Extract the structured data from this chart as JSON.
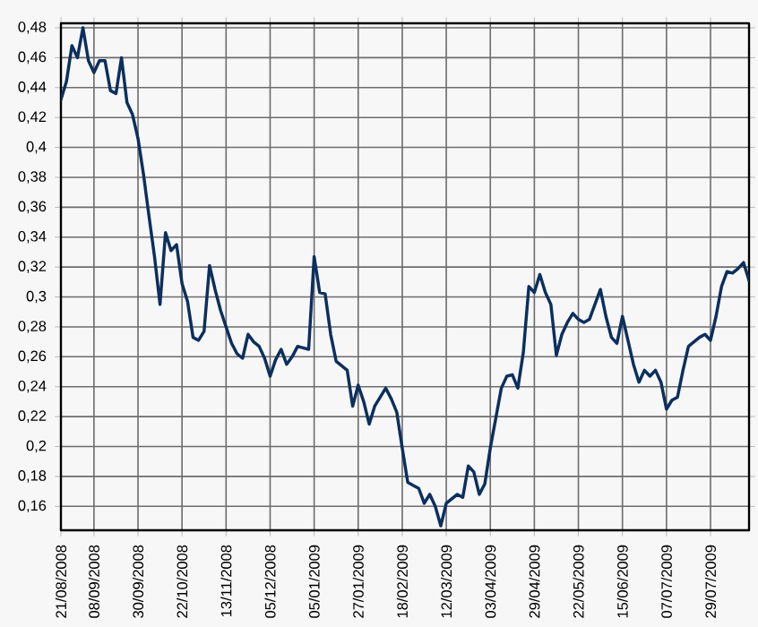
{
  "chart_data": {
    "type": "line",
    "categories": [
      "21/08/2008",
      null,
      null,
      null,
      null,
      null,
      "08/09/2008",
      null,
      null,
      null,
      null,
      null,
      null,
      null,
      "30/09/2008",
      null,
      null,
      null,
      null,
      null,
      null,
      null,
      "22/10/2008",
      null,
      null,
      null,
      null,
      null,
      null,
      null,
      "13/11/2008",
      null,
      null,
      null,
      null,
      null,
      null,
      null,
      "05/12/2008",
      null,
      null,
      null,
      null,
      null,
      null,
      null,
      "05/01/2009",
      null,
      null,
      null,
      null,
      null,
      null,
      null,
      "27/01/2009",
      null,
      null,
      null,
      null,
      null,
      null,
      null,
      "18/02/2009",
      null,
      null,
      null,
      null,
      null,
      null,
      null,
      "12/03/2009",
      null,
      null,
      null,
      null,
      null,
      null,
      null,
      "03/04/2009",
      null,
      null,
      null,
      null,
      null,
      null,
      null,
      "29/04/2009",
      null,
      null,
      null,
      null,
      null,
      null,
      null,
      "22/05/2009",
      null,
      null,
      null,
      null,
      null,
      null,
      null,
      "15/06/2009",
      null,
      null,
      null,
      null,
      null,
      null,
      null,
      "07/07/2009",
      null,
      null,
      null,
      null,
      null,
      null,
      null,
      "29/07/2009",
      null,
      null,
      null,
      null,
      null,
      null,
      null
    ],
    "series": [
      {
        "color": "#0b2f5e",
        "values": [
          0.432,
          0.444,
          0.468,
          0.46,
          0.48,
          0.458,
          0.45,
          0.458,
          0.458,
          0.438,
          0.436,
          0.46,
          0.43,
          0.422,
          0.406,
          0.382,
          0.354,
          0.327,
          0.295,
          0.343,
          0.331,
          0.335,
          0.309,
          0.297,
          0.273,
          0.271,
          0.277,
          0.321,
          0.305,
          0.291,
          0.28,
          0.269,
          0.262,
          0.259,
          0.275,
          0.27,
          0.267,
          0.259,
          0.247,
          0.258,
          0.265,
          0.255,
          0.26,
          0.267,
          0.266,
          0.265,
          0.327,
          0.303,
          0.302,
          0.275,
          0.257,
          0.254,
          0.251,
          0.227,
          0.241,
          0.23,
          0.215,
          0.227,
          0.233,
          0.239,
          0.232,
          0.223,
          0.199,
          0.176,
          0.174,
          0.172,
          0.162,
          0.168,
          0.16,
          0.147,
          0.162,
          0.165,
          0.168,
          0.166,
          0.187,
          0.183,
          0.168,
          0.175,
          0.199,
          0.219,
          0.239,
          0.247,
          0.248,
          0.239,
          0.263,
          0.307,
          0.303,
          0.315,
          0.303,
          0.295,
          0.261,
          0.275,
          0.283,
          0.289,
          0.285,
          0.283,
          0.285,
          0.295,
          0.305,
          0.287,
          0.273,
          0.269,
          0.287,
          0.271,
          0.255,
          0.243,
          0.251,
          0.247,
          0.251,
          0.243,
          0.225,
          0.231,
          0.233,
          0.251,
          0.267,
          0.27,
          0.273,
          0.275,
          0.271,
          0.287,
          0.307,
          0.317,
          0.316,
          0.319,
          0.323,
          0.311
        ]
      }
    ],
    "ylim": [
      0.144,
      0.483
    ],
    "yticks": [
      {
        "value": 0.16,
        "label": "0,16"
      },
      {
        "value": 0.18,
        "label": "0,18"
      },
      {
        "value": 0.2,
        "label": "0,2"
      },
      {
        "value": 0.22,
        "label": "0,22"
      },
      {
        "value": 0.24,
        "label": "0,24"
      },
      {
        "value": 0.26,
        "label": "0,26"
      },
      {
        "value": 0.28,
        "label": "0,28"
      },
      {
        "value": 0.3,
        "label": "0,3"
      },
      {
        "value": 0.32,
        "label": "0,32"
      },
      {
        "value": 0.34,
        "label": "0,34"
      },
      {
        "value": 0.36,
        "label": "0,36"
      },
      {
        "value": 0.38,
        "label": "0,38"
      },
      {
        "value": 0.4,
        "label": "0,4"
      },
      {
        "value": 0.42,
        "label": "0,42"
      },
      {
        "value": 0.44,
        "label": "0,44"
      },
      {
        "value": 0.46,
        "label": "0,46"
      },
      {
        "value": 0.48,
        "label": "0,48"
      }
    ],
    "grid": true,
    "marker": "none",
    "line_style": "solid"
  }
}
